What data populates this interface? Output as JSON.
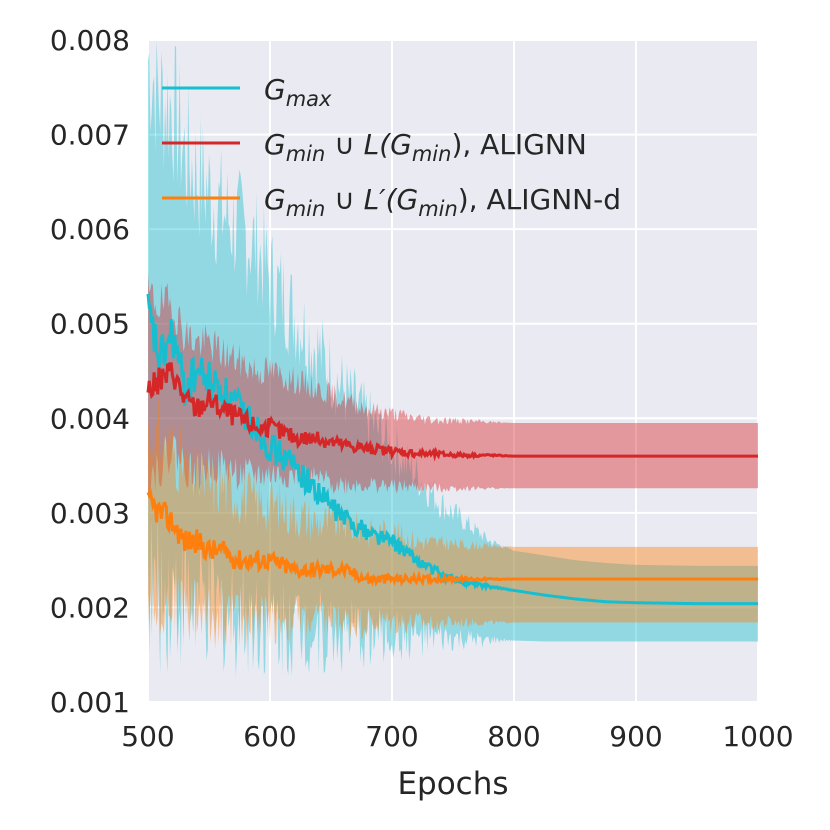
{
  "chart_data": {
    "type": "line",
    "title": "",
    "xlabel": "Epochs",
    "ylabel": "",
    "xlim": [
      500,
      1000
    ],
    "ylim": [
      0.001,
      0.008
    ],
    "xticks": [
      500,
      600,
      700,
      800,
      900,
      1000
    ],
    "xtick_labels": [
      "500",
      "600",
      "700",
      "800",
      "900",
      "1000"
    ],
    "yticks": [
      0.001,
      0.002,
      0.003,
      0.004,
      0.005,
      0.006,
      0.007,
      0.008
    ],
    "ytick_labels": [
      "0.001",
      "0.002",
      "0.003",
      "0.004",
      "0.005",
      "0.006",
      "0.007",
      "0.008"
    ],
    "grid": true,
    "legend_position": "top-left",
    "colors": {
      "plot_background": "#EAEAF2",
      "grid": "#FFFFFF",
      "text": "#262626"
    },
    "series": [
      {
        "key": "gmax",
        "name_main": "G",
        "name_sub": "max",
        "name_rest": "",
        "color": "#17BECF",
        "x": [
          500,
          510,
          520,
          530,
          540,
          550,
          560,
          575,
          590,
          600,
          620,
          640,
          660,
          680,
          700,
          720,
          740,
          760,
          780,
          800,
          825,
          850,
          875,
          900,
          950,
          1000
        ],
        "y": [
          0.0051,
          0.0046,
          0.0049,
          0.0043,
          0.0045,
          0.0044,
          0.0043,
          0.0041,
          0.0039,
          0.0037,
          0.0035,
          0.0032,
          0.00295,
          0.0028,
          0.0027,
          0.0025,
          0.00235,
          0.00226,
          0.00222,
          0.00218,
          0.00213,
          0.00209,
          0.00206,
          0.00205,
          0.00204,
          0.00204
        ],
        "upper": [
          0.0078,
          0.0074,
          0.0073,
          0.0068,
          0.0066,
          0.0064,
          0.0062,
          0.006,
          0.0058,
          0.0055,
          0.0051,
          0.0047,
          0.0043,
          0.004,
          0.0037,
          0.0034,
          0.0031,
          0.0029,
          0.0027,
          0.0026,
          0.00255,
          0.0025,
          0.00247,
          0.00245,
          0.00244,
          0.00244
        ],
        "lower": [
          0.0023,
          0.0021,
          0.0022,
          0.0021,
          0.002,
          0.002,
          0.00195,
          0.00195,
          0.0019,
          0.00185,
          0.0018,
          0.00175,
          0.0017,
          0.0017,
          0.0017,
          0.00168,
          0.00166,
          0.00165,
          0.00165,
          0.00165,
          0.00164,
          0.00164,
          0.00164,
          0.00164,
          0.00164,
          0.00164
        ]
      },
      {
        "key": "alignn",
        "name_main": "G",
        "name_sub": "min",
        "name_rest": " ∪ L(G",
        "name_rest_sub": "min",
        "name_tail": "), ALIGNN",
        "color": "#D62728",
        "x": [
          500,
          510,
          520,
          530,
          540,
          550,
          560,
          575,
          590,
          600,
          620,
          640,
          660,
          680,
          700,
          720,
          740,
          760,
          780,
          800,
          850,
          900,
          950,
          1000
        ],
        "y": [
          0.0043,
          0.0044,
          0.0045,
          0.0042,
          0.0041,
          0.0042,
          0.0041,
          0.004,
          0.0039,
          0.0039,
          0.0038,
          0.00378,
          0.00372,
          0.00368,
          0.00365,
          0.00363,
          0.00362,
          0.00361,
          0.00361,
          0.0036,
          0.0036,
          0.0036,
          0.0036,
          0.0036
        ],
        "upper": [
          0.0053,
          0.0052,
          0.0052,
          0.0049,
          0.0048,
          0.0048,
          0.0047,
          0.0046,
          0.0045,
          0.0045,
          0.0044,
          0.0043,
          0.0042,
          0.0041,
          0.00405,
          0.004,
          0.00398,
          0.00397,
          0.00396,
          0.00395,
          0.00395,
          0.00395,
          0.00395,
          0.00395
        ],
        "lower": [
          0.0034,
          0.0035,
          0.0037,
          0.0035,
          0.0034,
          0.0035,
          0.0035,
          0.0034,
          0.0034,
          0.0034,
          0.0034,
          0.00335,
          0.0033,
          0.0033,
          0.00328,
          0.00327,
          0.00326,
          0.00326,
          0.00326,
          0.00326,
          0.00326,
          0.00326,
          0.00326,
          0.00326
        ]
      },
      {
        "key": "alignn_d",
        "name_main": "G",
        "name_sub": "min",
        "name_rest": " ∪ L′(G",
        "name_rest_sub": "min",
        "name_tail": "), ALIGNN-d",
        "color": "#FF7F0E",
        "x": [
          500,
          510,
          520,
          530,
          540,
          550,
          560,
          575,
          590,
          600,
          620,
          640,
          660,
          680,
          700,
          720,
          740,
          760,
          780,
          800,
          850,
          900,
          950,
          1000
        ],
        "y": [
          0.0031,
          0.003,
          0.0029,
          0.0027,
          0.0027,
          0.0026,
          0.0026,
          0.0025,
          0.0025,
          0.0025,
          0.0024,
          0.0024,
          0.0024,
          0.0023,
          0.0023,
          0.0023,
          0.0023,
          0.0023,
          0.0023,
          0.0023,
          0.0023,
          0.0023,
          0.0023,
          0.0023
        ],
        "upper": [
          0.0039,
          0.0038,
          0.0037,
          0.0035,
          0.0034,
          0.0033,
          0.0033,
          0.0032,
          0.0031,
          0.0031,
          0.003,
          0.0029,
          0.0029,
          0.0028,
          0.0028,
          0.0027,
          0.00268,
          0.00266,
          0.00265,
          0.00264,
          0.00264,
          0.00264,
          0.00264,
          0.00264
        ],
        "lower": [
          0.0021,
          0.0021,
          0.0021,
          0.002,
          0.002,
          0.0019,
          0.0019,
          0.0019,
          0.0019,
          0.0019,
          0.00188,
          0.00186,
          0.00185,
          0.00184,
          0.00184,
          0.00184,
          0.00184,
          0.00184,
          0.00184,
          0.00184,
          0.00184,
          0.00184,
          0.00184,
          0.00184
        ]
      }
    ]
  }
}
